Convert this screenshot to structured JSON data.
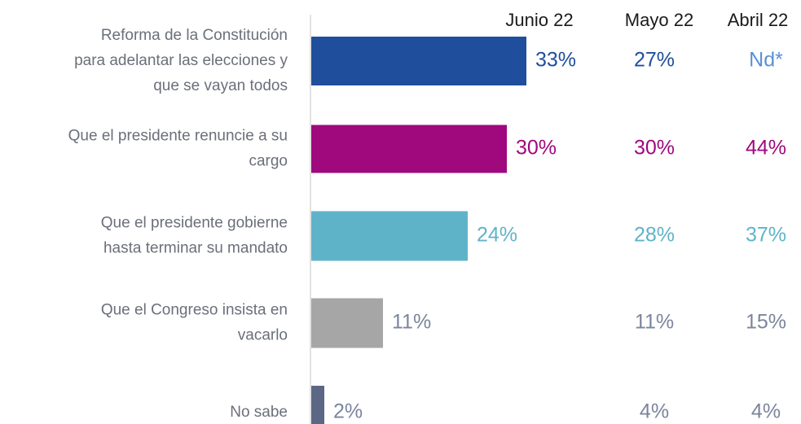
{
  "chart_data": {
    "type": "bar",
    "orientation": "horizontal",
    "categories": [
      [
        "Reforma de la Constitución",
        "para adelantar las elecciones y",
        "que se vayan todos"
      ],
      [
        "Que el presidente renuncie a su",
        "cargo"
      ],
      [
        "Que el presidente gobierne",
        "hasta terminar su mandato"
      ],
      [
        "Que el Congreso insista en",
        "vacarlo"
      ],
      [
        "No sabe"
      ]
    ],
    "series": [
      {
        "name": "Junio 22",
        "values": [
          33,
          30,
          24,
          11,
          2
        ],
        "value_labels": [
          "33%",
          "30%",
          "24%",
          "11%",
          "2%"
        ],
        "colors": [
          "#1f4e9c",
          "#a0087e",
          "#5fb3c9",
          "#a6a6a6",
          "#5b6785"
        ],
        "label_colors": [
          "#1f4e9c",
          "#a0087e",
          "#5fb3c9",
          "#7b859c",
          "#7b859c"
        ]
      },
      {
        "name": "Mayo 22",
        "values": [
          27,
          30,
          28,
          11,
          4
        ],
        "value_labels": [
          "27%",
          "30%",
          "28%",
          "11%",
          "4%"
        ],
        "label_colors": [
          "#1f4e9c",
          "#a0087e",
          "#5fb3c9",
          "#7b859c",
          "#7b859c"
        ]
      },
      {
        "name": "Abril 22",
        "values": [
          null,
          44,
          37,
          15,
          4
        ],
        "value_labels": [
          "Nd*",
          "44%",
          "37%",
          "15%",
          "4%"
        ],
        "label_colors": [
          "#5b8fd6",
          "#a0087e",
          "#5fb3c9",
          "#7b859c",
          "#7b859c"
        ]
      }
    ]
  }
}
